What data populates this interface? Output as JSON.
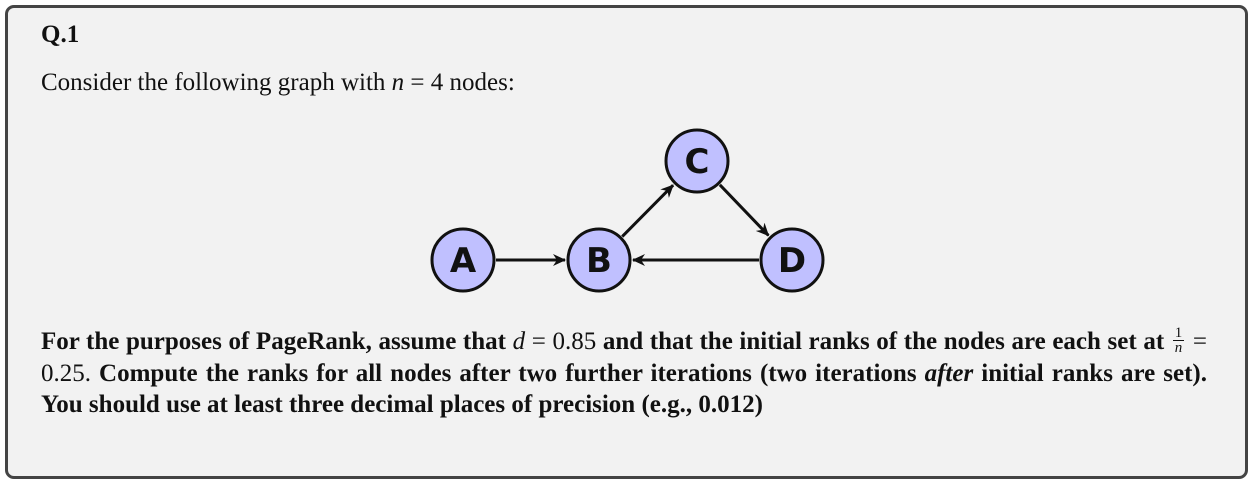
{
  "question": {
    "title": "Q.1",
    "intro": {
      "before": "Consider the following graph with ",
      "var": "n",
      "eq": " = 4",
      "after": " nodes:"
    }
  },
  "graph": {
    "nodes": [
      {
        "id": "A",
        "label": "A"
      },
      {
        "id": "B",
        "label": "B"
      },
      {
        "id": "C",
        "label": "C"
      },
      {
        "id": "D",
        "label": "D"
      }
    ],
    "edges": [
      {
        "from": "A",
        "to": "B"
      },
      {
        "from": "B",
        "to": "C"
      },
      {
        "from": "C",
        "to": "D"
      },
      {
        "from": "D",
        "to": "B"
      }
    ],
    "node_fill": "#c0c0ff",
    "node_stroke": "#111111"
  },
  "body": {
    "p1": "For the purposes of PageRank, assume that ",
    "d_var": "d",
    "d_eq": " = 0.85",
    "p2": " and that the initial ranks of the nodes are each set at ",
    "frac_num": "1",
    "frac_den": "n",
    "frac_eq": " = 0.25.",
    "p3": " Compute the ranks for all nodes after two further iterations (two iterations ",
    "emph": "after",
    "p4": " initial ranks are set). You should use at least three decimal places of precision (e.g., 0.012)"
  }
}
